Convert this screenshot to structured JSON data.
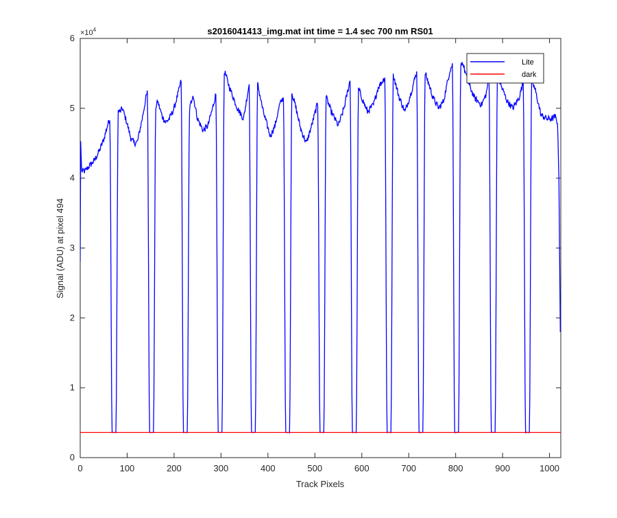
{
  "chart_data": {
    "type": "line",
    "title": "s2016041413_img.mat int time = 1.4 sec  700 nm RS01",
    "xlabel": "Track Pixels",
    "ylabel": "Signal (ADU) at pixel 494",
    "y_exponent_label": "×10",
    "y_exponent_power": "4",
    "xlim": [
      0,
      1024
    ],
    "ylim": [
      0,
      60000
    ],
    "xticks": [
      0,
      100,
      200,
      300,
      400,
      500,
      600,
      700,
      800,
      900,
      1000
    ],
    "xtick_labels": [
      "0",
      "100",
      "200",
      "300",
      "400",
      "500",
      "600",
      "700",
      "800",
      "900",
      "1000"
    ],
    "yticks": [
      0,
      10000,
      20000,
      30000,
      40000,
      50000,
      60000
    ],
    "ytick_labels": [
      "0",
      "1",
      "2",
      "3",
      "4",
      "5",
      "6"
    ],
    "legend_position": "top-right",
    "series": [
      {
        "name": "Lite",
        "color": "#0000ff",
        "plateau_points": [
          [
            0,
            28000
          ],
          [
            1,
            45300
          ],
          [
            3,
            41000
          ],
          [
            10,
            41000
          ],
          [
            20,
            41800
          ],
          [
            30,
            42500
          ],
          [
            40,
            43800
          ],
          [
            50,
            45500
          ],
          [
            58,
            47500
          ],
          [
            63,
            48500
          ],
          [
            66,
            49800
          ],
          [
            85,
            49500
          ],
          [
            90,
            50000
          ],
          [
            100,
            47800
          ],
          [
            108,
            45700
          ],
          [
            115,
            45000
          ],
          [
            122,
            45200
          ],
          [
            132,
            48500
          ],
          [
            140,
            51500
          ],
          [
            144,
            52500
          ],
          [
            158,
            49500
          ],
          [
            165,
            51000
          ],
          [
            175,
            48800
          ],
          [
            182,
            48000
          ],
          [
            190,
            48500
          ],
          [
            200,
            50000
          ],
          [
            210,
            52500
          ],
          [
            215,
            54000
          ],
          [
            218,
            53000
          ],
          [
            232,
            49500
          ],
          [
            240,
            52000
          ],
          [
            250,
            48500
          ],
          [
            262,
            46800
          ],
          [
            272,
            47500
          ],
          [
            282,
            50000
          ],
          [
            290,
            52300
          ],
          [
            308,
            55200
          ],
          [
            318,
            53000
          ],
          [
            335,
            50000
          ],
          [
            348,
            48500
          ],
          [
            360,
            53500
          ],
          [
            362,
            53800
          ],
          [
            378,
            53500
          ],
          [
            390,
            49500
          ],
          [
            405,
            46000
          ],
          [
            415,
            47500
          ],
          [
            425,
            50500
          ],
          [
            436,
            52000
          ],
          [
            448,
            53000
          ],
          [
            458,
            50500
          ],
          [
            470,
            47000
          ],
          [
            482,
            45000
          ],
          [
            493,
            47500
          ],
          [
            505,
            50500
          ],
          [
            522,
            52000
          ],
          [
            535,
            49500
          ],
          [
            550,
            47500
          ],
          [
            562,
            50000
          ],
          [
            575,
            54000
          ],
          [
            588,
            53800
          ],
          [
            600,
            51500
          ],
          [
            612,
            49500
          ],
          [
            625,
            50500
          ],
          [
            635,
            53000
          ],
          [
            645,
            54000
          ],
          [
            660,
            55500
          ],
          [
            668,
            54500
          ],
          [
            680,
            51500
          ],
          [
            692,
            49500
          ],
          [
            704,
            52000
          ],
          [
            716,
            55000
          ],
          [
            730,
            56000
          ],
          [
            738,
            54500
          ],
          [
            752,
            51500
          ],
          [
            764,
            50000
          ],
          [
            774,
            51000
          ],
          [
            788,
            55500
          ],
          [
            795,
            56500
          ],
          [
            815,
            56500
          ],
          [
            825,
            54000
          ],
          [
            840,
            51500
          ],
          [
            855,
            50500
          ],
          [
            865,
            52000
          ],
          [
            872,
            55000
          ],
          [
            888,
            55000
          ],
          [
            898,
            53000
          ],
          [
            910,
            51000
          ],
          [
            922,
            50000
          ],
          [
            935,
            51500
          ],
          [
            945,
            54000
          ],
          [
            960,
            54500
          ],
          [
            970,
            52500
          ],
          [
            982,
            49000
          ],
          [
            995,
            48500
          ],
          [
            1005,
            48500
          ],
          [
            1012,
            48800
          ],
          [
            1017,
            48000
          ],
          [
            1020,
            40000
          ],
          [
            1023,
            18000
          ]
        ],
        "dip_centers": [
          72,
          152,
          224,
          298,
          369,
          442,
          515,
          584,
          658,
          726,
          802,
          880,
          953
        ],
        "dip_min": 3600
      },
      {
        "name": "dark",
        "color": "#ff0000",
        "x": [
          0,
          1024
        ],
        "values": [
          3600,
          3600
        ]
      }
    ]
  }
}
